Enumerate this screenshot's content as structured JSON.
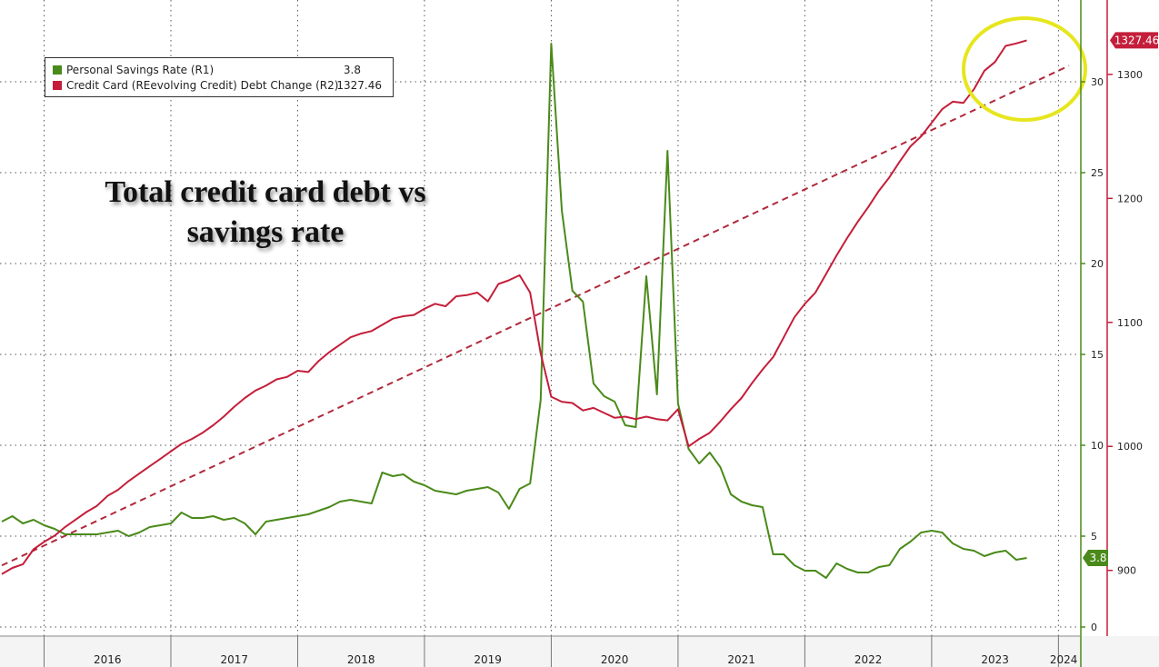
{
  "chart_data": {
    "type": "line",
    "title": "Total credit card debt vs savings rate",
    "x_range": [
      "2015-09",
      "2024-02"
    ],
    "years": [
      "2016",
      "2017",
      "2018",
      "2019",
      "2020",
      "2021",
      "2022",
      "2023",
      "2024"
    ],
    "axes": {
      "R1": {
        "range": [
          -0.5,
          34.5
        ],
        "ticks": [
          0,
          5,
          10,
          15,
          20,
          25,
          30
        ],
        "color": "#4a8a1a"
      },
      "R2": {
        "range": [
          847,
          1360
        ],
        "ticks": [
          900,
          1000,
          1100,
          1200,
          1300
        ],
        "color": "#c41e3a"
      }
    },
    "grid": true,
    "legend_position": "top-left",
    "series": [
      {
        "name": "Personal Savings Rate (R1)",
        "last_value": "3.8",
        "axis": "R1",
        "color": "#4a8a1a",
        "start": "2015-09",
        "values": [
          5.8,
          6.1,
          5.7,
          5.9,
          5.6,
          5.4,
          5.1,
          5.1,
          5.1,
          5.1,
          5.2,
          5.3,
          5.0,
          5.2,
          5.5,
          5.6,
          5.7,
          6.3,
          6.0,
          6.0,
          6.1,
          5.9,
          6.0,
          5.7,
          5.1,
          5.8,
          5.9,
          6.0,
          6.1,
          6.2,
          6.4,
          6.6,
          6.9,
          7.0,
          6.9,
          6.8,
          8.5,
          8.3,
          8.4,
          8.0,
          7.8,
          7.5,
          7.4,
          7.3,
          7.5,
          7.6,
          7.7,
          7.4,
          6.5,
          7.6,
          7.9,
          12.5,
          32.1,
          22.9,
          18.5,
          17.9,
          13.4,
          12.7,
          12.4,
          11.1,
          11.0,
          19.3,
          12.8,
          26.2,
          12.3,
          9.8,
          9.0,
          9.6,
          8.8,
          7.3,
          6.9,
          6.7,
          6.6,
          4.0,
          4.0,
          3.4,
          3.1,
          3.1,
          2.7,
          3.5,
          3.2,
          3.0,
          3.0,
          3.3,
          3.4,
          4.3,
          4.7,
          5.2,
          5.3,
          5.2,
          4.6,
          4.3,
          4.2,
          3.9,
          4.1,
          4.2,
          3.7,
          3.8
        ]
      },
      {
        "name": "Credit Card (REevolving Credit) Debt Change (R2)",
        "last_value": "1327.46",
        "axis": "R2",
        "color": "#c41e3a",
        "start": "2015-09",
        "values": [
          897,
          902,
          905,
          917,
          923,
          928,
          935,
          941,
          947,
          952,
          960,
          965,
          972,
          978,
          984,
          990,
          996,
          1002,
          1006,
          1011,
          1017,
          1024,
          1032,
          1039,
          1045,
          1049,
          1054,
          1056,
          1061,
          1060,
          1069,
          1076,
          1082,
          1088,
          1091,
          1093,
          1098,
          1103,
          1105,
          1106,
          1111,
          1115,
          1113,
          1121,
          1122,
          1124,
          1117,
          1131,
          1134,
          1138,
          1124,
          1075,
          1040,
          1036,
          1035,
          1029,
          1031,
          1027,
          1023,
          1024,
          1022,
          1024,
          1022,
          1021,
          1030,
          1000,
          1006,
          1011,
          1020,
          1030,
          1039,
          1051,
          1062,
          1072,
          1088,
          1104,
          1115,
          1124,
          1139,
          1154,
          1168,
          1181,
          1193,
          1206,
          1217,
          1230,
          1242,
          1250,
          1261,
          1272,
          1278,
          1277,
          1288,
          1303,
          1310,
          1323,
          1325,
          1327.46
        ]
      },
      {
        "name": "",
        "axis": "R2",
        "style": "dashed",
        "color": "#b02a3c",
        "x": [
          "2015-09",
          "2024-02"
        ],
        "values": [
          904,
          1307
        ]
      }
    ]
  }
}
